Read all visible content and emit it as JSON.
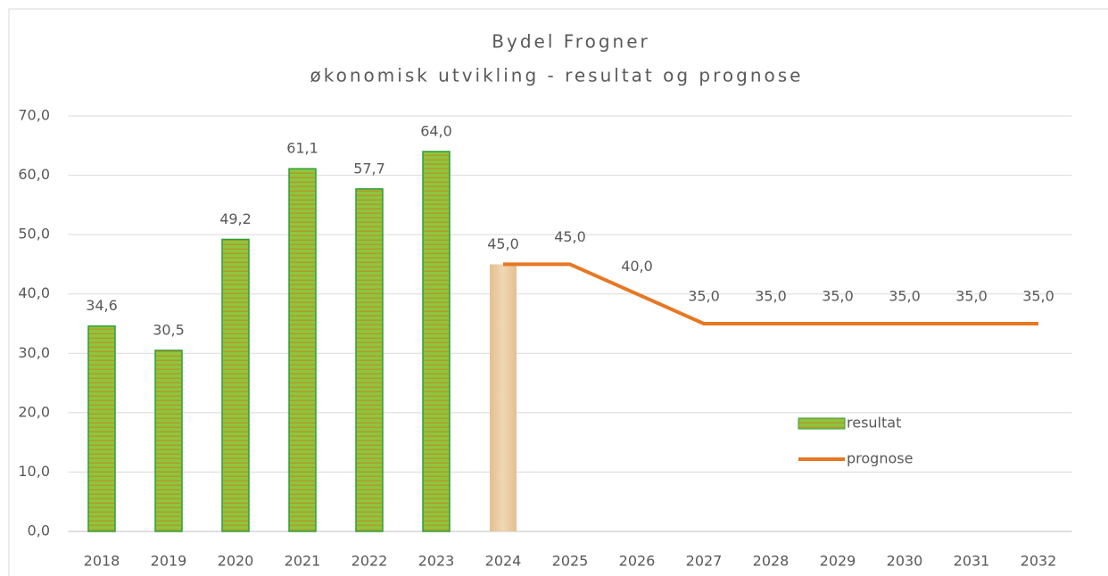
{
  "chart_data": {
    "type": "bar_line",
    "title": [
      "Bydel Frogner",
      "økonomisk utvikling - resultat og prognose"
    ],
    "categories": [
      "2018",
      "2019",
      "2020",
      "2021",
      "2022",
      "2023",
      "2024",
      "2025",
      "2026",
      "2027",
      "2028",
      "2029",
      "2030",
      "2031",
      "2032"
    ],
    "series": [
      {
        "name": "resultat",
        "type": "bar",
        "color": "#8cc63f",
        "stripe_color": "#b59a2a",
        "edge_color": "#2e9e3a",
        "colors": [
          "#8cc63f",
          "#8cc63f",
          "#8cc63f",
          "#8cc63f",
          "#8cc63f",
          "#8cc63f",
          "#f0d7b4",
          null,
          null,
          null,
          null,
          null,
          null,
          null,
          null
        ],
        "values": [
          34.6,
          30.5,
          49.2,
          61.1,
          57.7,
          64.0,
          45.0,
          null,
          null,
          null,
          null,
          null,
          null,
          null,
          null
        ],
        "value_labels": [
          "34,6",
          "30,5",
          "49,2",
          "61,1",
          "57,7",
          "64,0",
          "45,0",
          null,
          null,
          null,
          null,
          null,
          null,
          null,
          null
        ]
      },
      {
        "name": "prognose",
        "type": "line",
        "color": "#e87722",
        "values": [
          null,
          null,
          null,
          null,
          null,
          null,
          45.0,
          45.0,
          40.0,
          35.0,
          35.0,
          35.0,
          35.0,
          35.0,
          35.0
        ],
        "value_labels": [
          null,
          null,
          null,
          null,
          null,
          null,
          null,
          "45,0",
          "40,0",
          "35,0",
          "35,0",
          "35,0",
          "35,0",
          "35,0",
          "35,0"
        ]
      }
    ],
    "ylim": [
      0,
      70
    ],
    "yticks": [
      {
        "value": 0,
        "label": "0,0"
      },
      {
        "value": 10,
        "label": "10,0"
      },
      {
        "value": 20,
        "label": "20,0"
      },
      {
        "value": 30,
        "label": "30,0"
      },
      {
        "value": 40,
        "label": "40,0"
      },
      {
        "value": 50,
        "label": "50,0"
      },
      {
        "value": 60,
        "label": "60,0"
      },
      {
        "value": 70,
        "label": "70,0"
      }
    ],
    "grid": true,
    "legend": "lower right"
  }
}
